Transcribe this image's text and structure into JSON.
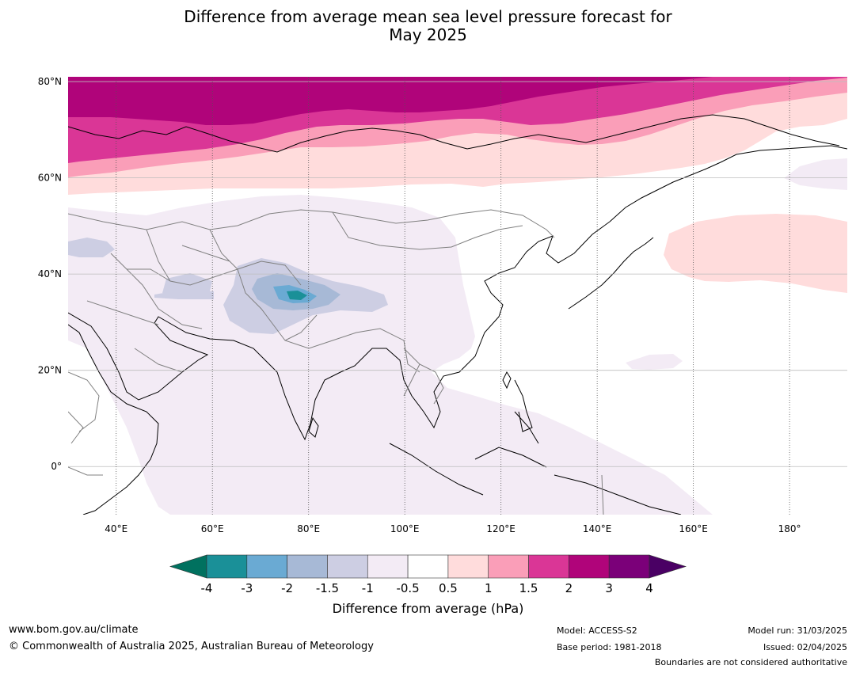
{
  "title": {
    "line1": "Difference from average mean sea level pressure forecast for",
    "line2": "May 2025"
  },
  "map": {
    "lon_range": [
      30,
      192
    ],
    "lat_range": [
      -10,
      81
    ],
    "lat_ticks": [
      {
        "value": 80,
        "label": "80°N"
      },
      {
        "value": 60,
        "label": "60°N"
      },
      {
        "value": 40,
        "label": "40°N"
      },
      {
        "value": 20,
        "label": "20°N"
      },
      {
        "value": 0,
        "label": "0°"
      }
    ],
    "lon_ticks": [
      {
        "value": 40,
        "label": "40°E"
      },
      {
        "value": 60,
        "label": "60°E"
      },
      {
        "value": 80,
        "label": "80°E"
      },
      {
        "value": 100,
        "label": "100°E"
      },
      {
        "value": 120,
        "label": "120°E"
      },
      {
        "value": 140,
        "label": "140°E"
      },
      {
        "value": 160,
        "label": "160°E"
      },
      {
        "value": 180,
        "label": "180°"
      }
    ]
  },
  "colorbar": {
    "title": "Difference from average (hPa)",
    "tick_labels": [
      "-4",
      "-3",
      "-2",
      "-1.5",
      "-1",
      "-0.5",
      "0.5",
      "1",
      "1.5",
      "2",
      "3",
      "4"
    ],
    "colors": {
      "below": "#00715f",
      "bins": [
        "#1a9098",
        "#6aaad3",
        "#a7b9d6",
        "#cdcee3",
        "#f3ebf5",
        "#ffffff",
        "#ffdcdc",
        "#fa9eb8",
        "#da3696",
        "#b0047a",
        "#7b0079"
      ],
      "above": "#4a0064"
    }
  },
  "footer": {
    "website": "www.bom.gov.au/climate",
    "copyright": "© Commonwealth of Australia 2025, Australian Bureau of Meteorology",
    "model": "Model: ACCESS-S2",
    "base_period": "Base period: 1981-2018",
    "model_run": "Model run: 31/03/2025",
    "issued": "Issued: 02/04/2025",
    "disclaimer": "Boundaries are not considered authoritative"
  }
}
